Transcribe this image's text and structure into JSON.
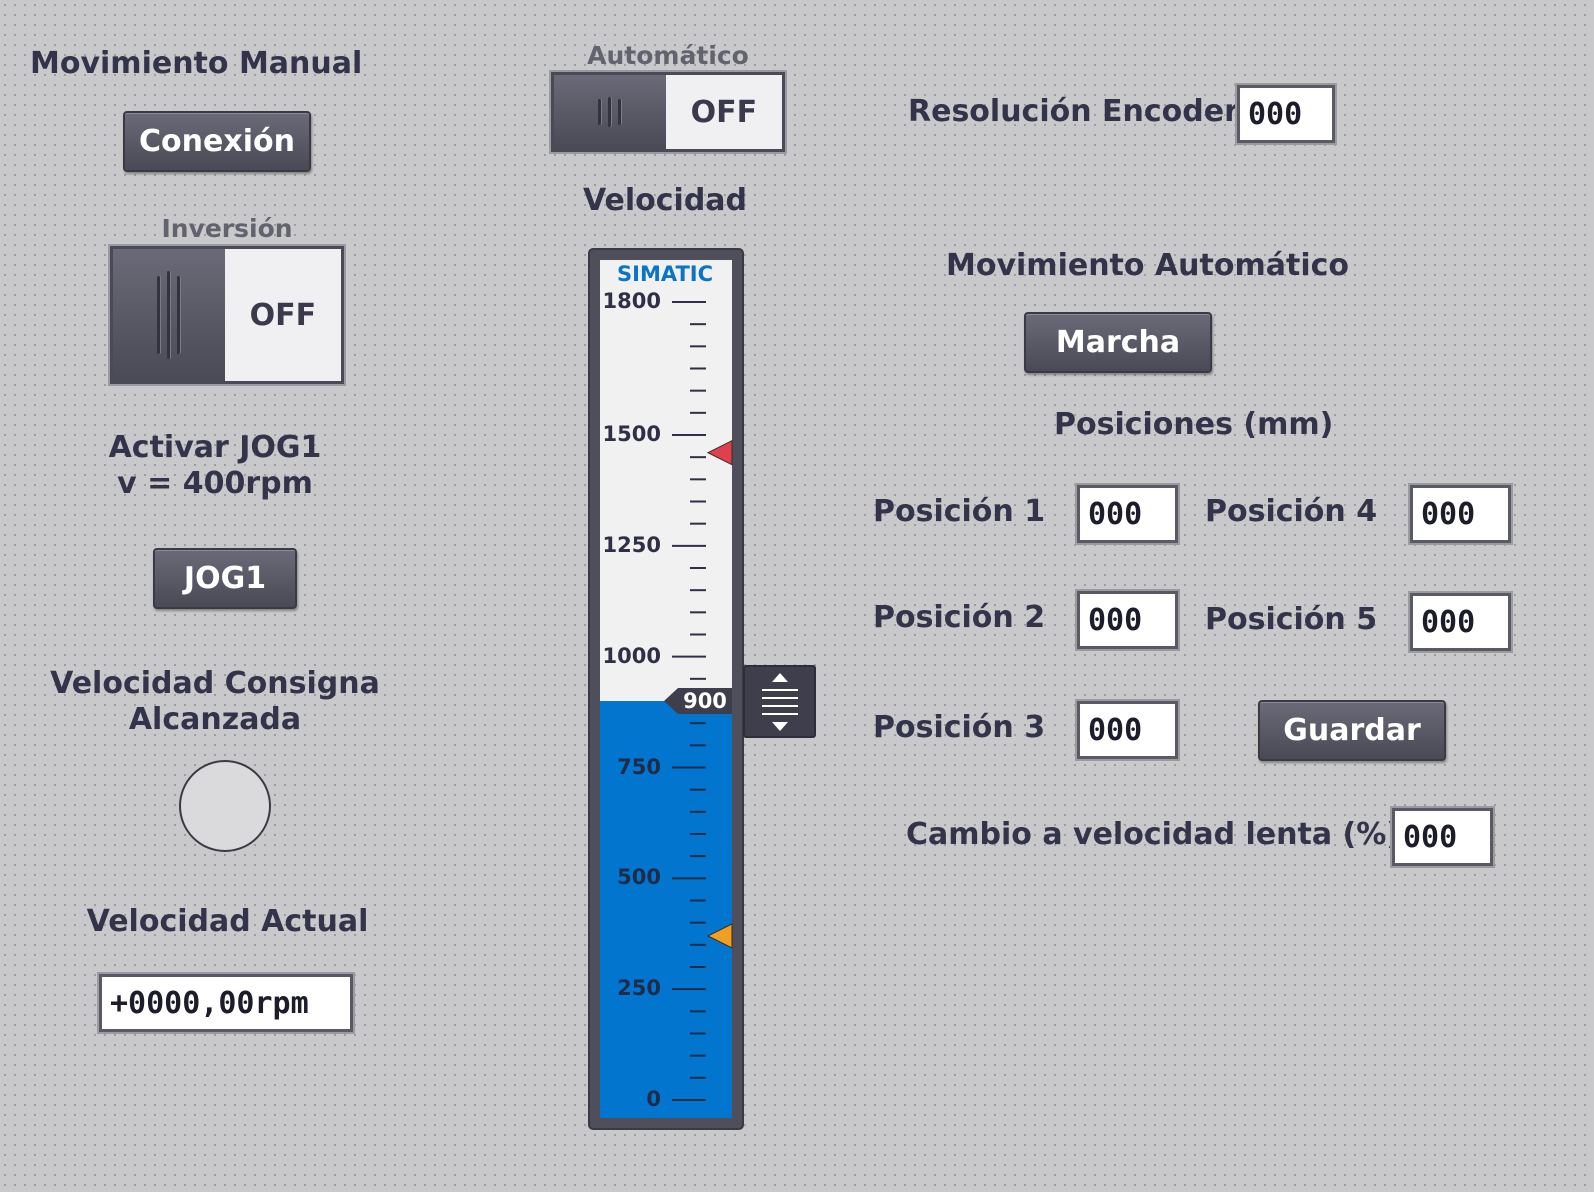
{
  "manual": {
    "title": "Movimiento Manual",
    "connect_button": "Conexión",
    "inversion_label": "Inversión",
    "inversion_state": "OFF",
    "jog_label_line1": "Activar JOG1",
    "jog_label_line2": "v = 400rpm",
    "jog_button": "JOG1",
    "reached_label_line1": "Velocidad Consigna",
    "reached_label_line2": "Alcanzada",
    "actual_label": "Velocidad Actual",
    "actual_value": "+0000,00rpm"
  },
  "auto": {
    "label": "Automático",
    "state": "OFF",
    "encoder_label": "Resolución Encoder",
    "encoder_value": "000",
    "title": "Movimiento Automático",
    "run_button": "Marcha",
    "positions_title": "Posiciones (mm)",
    "positions": [
      {
        "label": "Posición 1",
        "value": "000"
      },
      {
        "label": "Posición 2",
        "value": "000"
      },
      {
        "label": "Posición 3",
        "value": "000"
      },
      {
        "label": "Posición 4",
        "value": "000"
      },
      {
        "label": "Posición 5",
        "value": "000"
      }
    ],
    "save_button": "Guardar",
    "slow_label": "Cambio a velocidad lenta (%)",
    "slow_value": "000"
  },
  "speed": {
    "title": "Velocidad",
    "brand": "SIMATIC",
    "min": 0,
    "max": 1800,
    "value": 900,
    "value_label": "900",
    "tick_labels": [
      "1800",
      "1500",
      "1250",
      "1000",
      "750",
      "500",
      "250",
      "0"
    ],
    "tick_values": [
      1800,
      1500,
      1250,
      1000,
      750,
      500,
      250,
      0
    ],
    "limit_high": 1460,
    "limit_low": 370,
    "colors": {
      "fill": "#0275cf",
      "limit_high": "#e0404c",
      "limit_low": "#f0a020"
    }
  }
}
